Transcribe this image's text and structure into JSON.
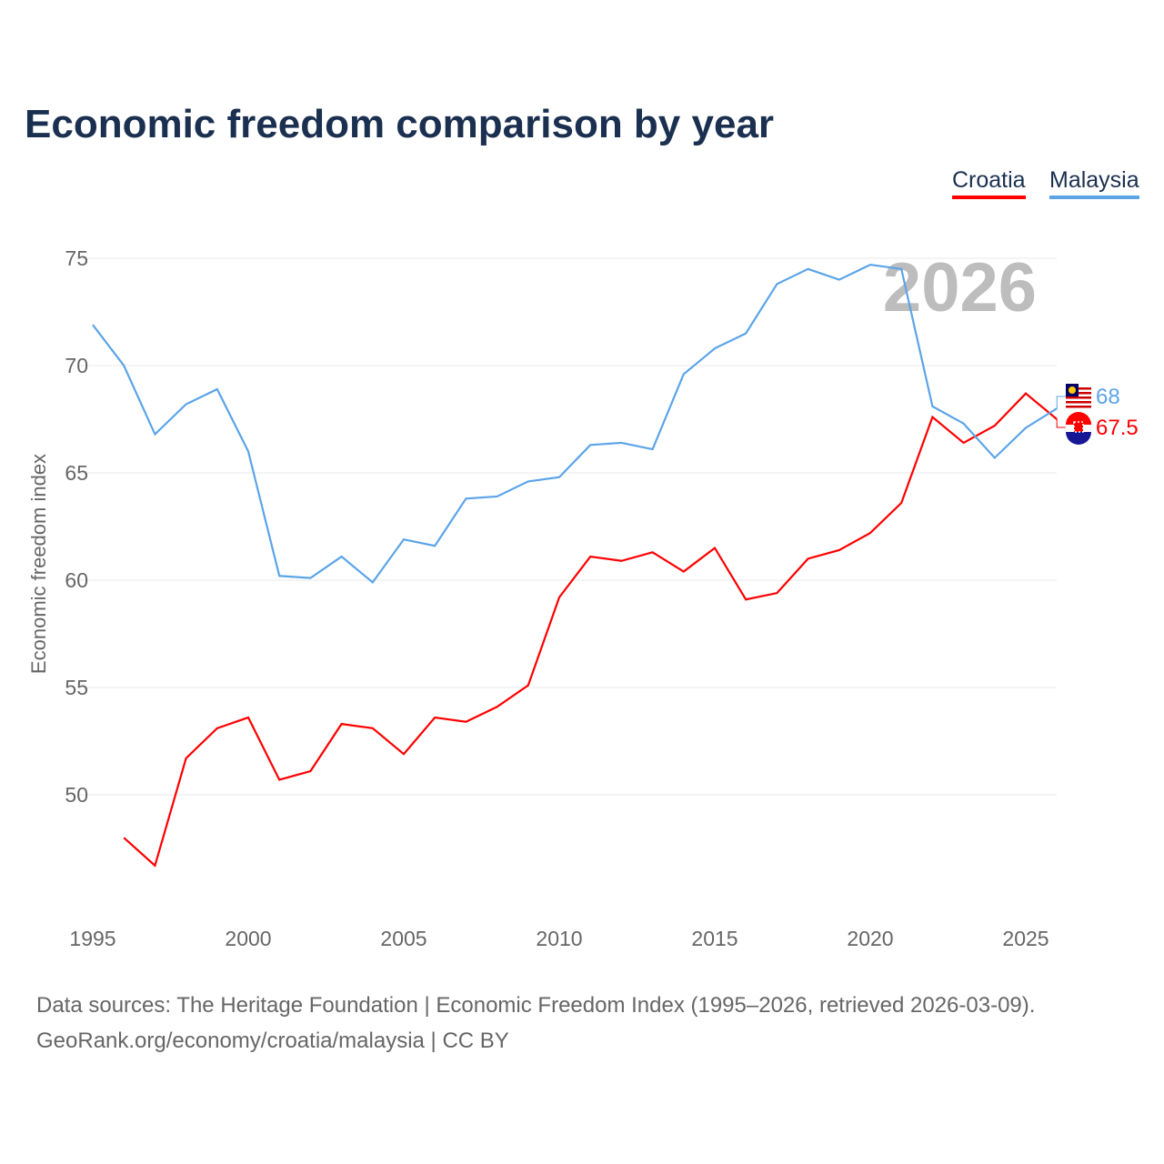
{
  "chart_data": {
    "type": "line",
    "title": "Economic freedom comparison by year",
    "ylabel": "Economic freedom index",
    "xlabel": "",
    "ylim": [
      45,
      77
    ],
    "xlim": [
      1995,
      2026
    ],
    "yticks": [
      50,
      55,
      60,
      65,
      70,
      75
    ],
    "xticks": [
      1995,
      2000,
      2005,
      2010,
      2015,
      2020,
      2025
    ],
    "grid": true,
    "legend_position": "top-right",
    "year_label": "2026",
    "series": [
      {
        "name": "Croatia",
        "color": "#ff0000",
        "end_label": "67.5",
        "x": [
          1996,
          1997,
          1998,
          1999,
          2000,
          2001,
          2002,
          2003,
          2004,
          2005,
          2006,
          2007,
          2008,
          2009,
          2010,
          2011,
          2012,
          2013,
          2014,
          2015,
          2016,
          2017,
          2018,
          2019,
          2020,
          2021,
          2022,
          2023,
          2024,
          2025,
          2026
        ],
        "values": [
          48.0,
          46.7,
          51.7,
          53.1,
          53.6,
          50.7,
          51.1,
          53.3,
          53.1,
          51.9,
          53.6,
          53.4,
          54.1,
          55.1,
          59.2,
          61.1,
          60.9,
          61.3,
          60.4,
          61.5,
          59.1,
          59.4,
          61.0,
          61.4,
          62.2,
          63.6,
          67.6,
          66.4,
          67.2,
          68.7,
          67.5
        ]
      },
      {
        "name": "Malaysia",
        "color": "#5ba4e8",
        "end_label": "68",
        "x": [
          1995,
          1996,
          1997,
          1998,
          1999,
          2000,
          2001,
          2002,
          2003,
          2004,
          2005,
          2006,
          2007,
          2008,
          2009,
          2010,
          2011,
          2012,
          2013,
          2014,
          2015,
          2016,
          2017,
          2018,
          2019,
          2020,
          2021,
          2022,
          2023,
          2024,
          2025,
          2026
        ],
        "values": [
          71.9,
          70.0,
          66.8,
          68.2,
          68.9,
          66.0,
          60.2,
          60.1,
          61.1,
          59.9,
          61.9,
          61.6,
          63.8,
          63.9,
          64.6,
          64.8,
          66.3,
          66.4,
          66.1,
          69.6,
          70.8,
          71.5,
          73.8,
          74.5,
          74.0,
          74.7,
          74.5,
          68.1,
          67.3,
          65.7,
          67.1,
          68.0
        ]
      }
    ]
  },
  "footer": {
    "line1": "Data sources: The Heritage Foundation | Economic Freedom Index (1995–2026, retrieved 2026-03-09).",
    "line2": "GeoRank.org/economy/croatia/malaysia | CC BY"
  }
}
